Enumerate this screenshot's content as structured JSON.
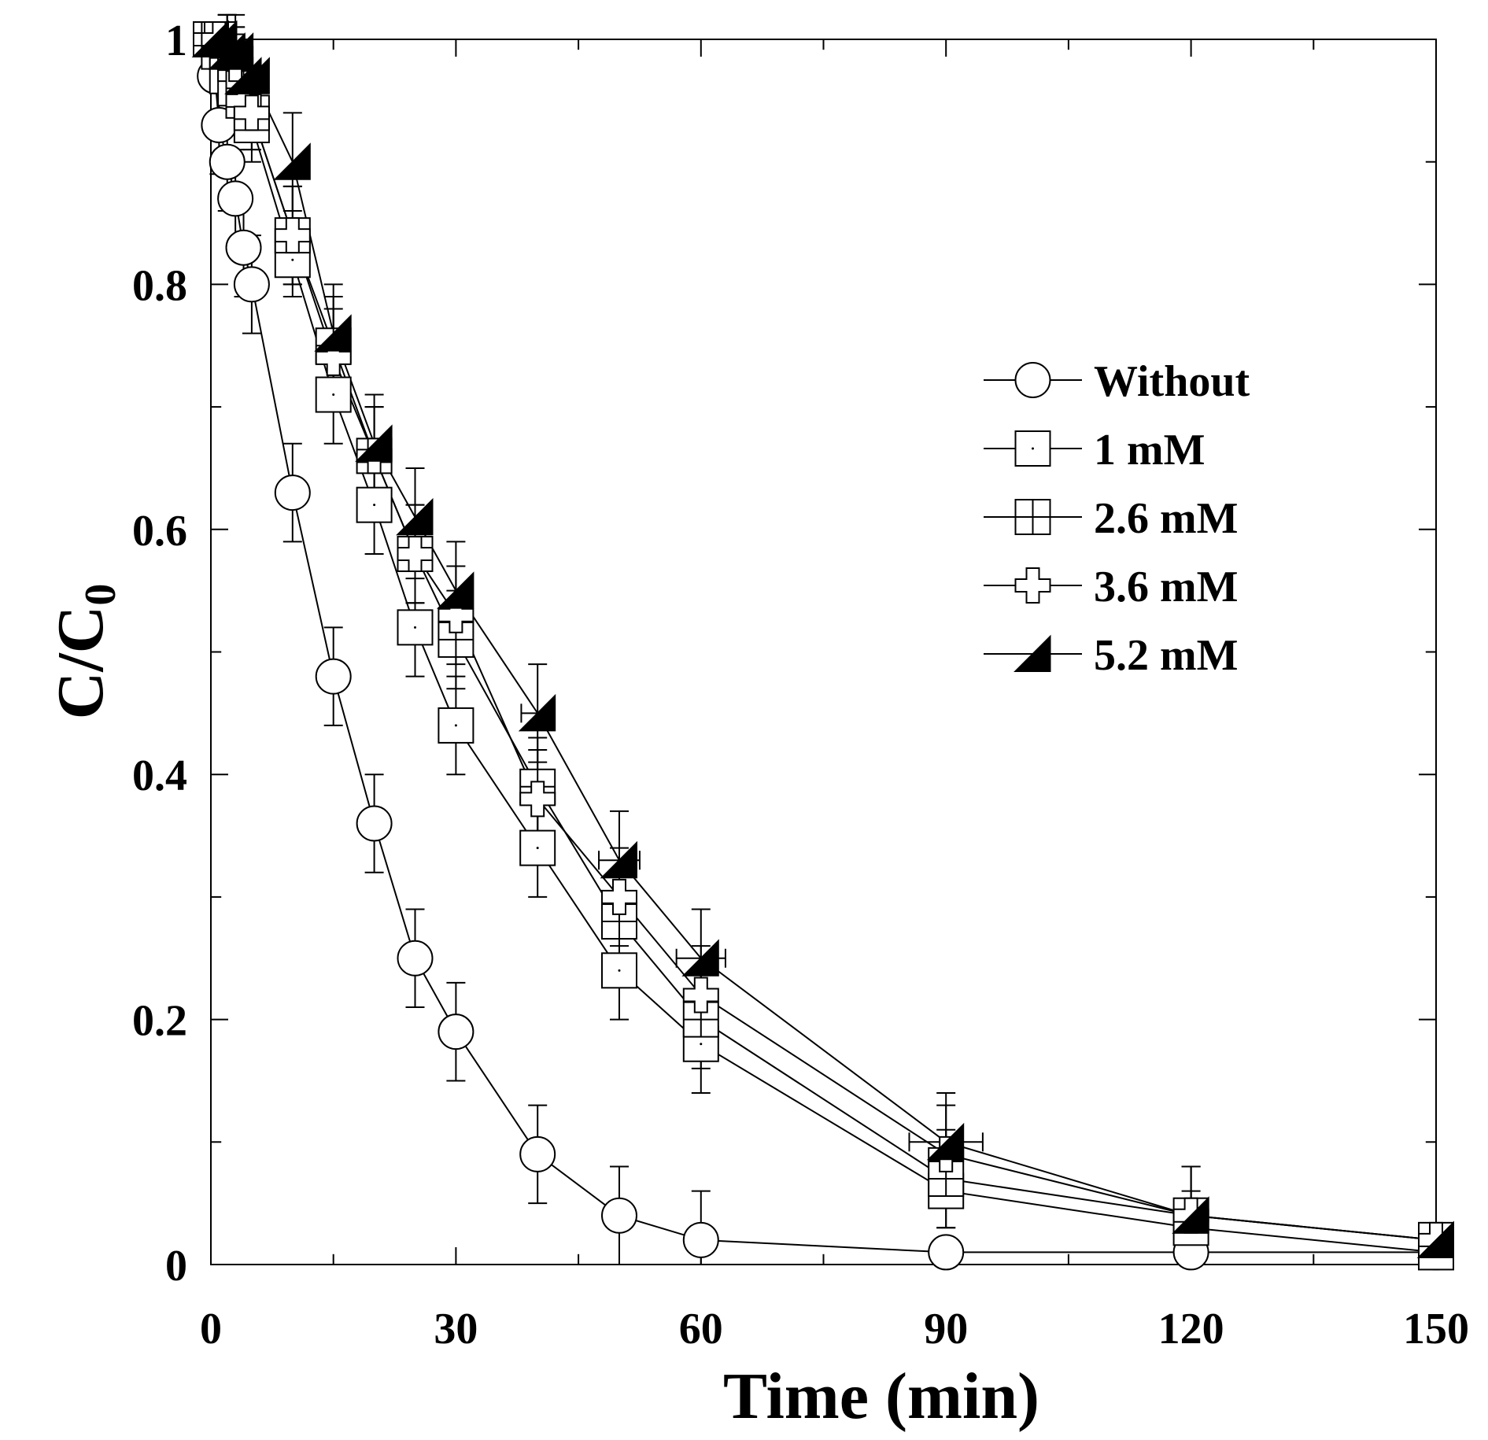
{
  "chart_data": {
    "type": "line",
    "title": "",
    "xlabel": "Time (min)",
    "ylabel_main": "C/C",
    "ylabel_sub": "0",
    "xlim": [
      0,
      150
    ],
    "ylim": [
      0,
      1
    ],
    "xticks": [
      0,
      30,
      60,
      90,
      120,
      150
    ],
    "xtick_labels": [
      "0",
      "30",
      "60",
      "90",
      "120",
      "150"
    ],
    "yticks": [
      0,
      0.2,
      0.4,
      0.6,
      0.8,
      1
    ],
    "ytick_labels": [
      "0",
      "0.2",
      "0.4",
      "0.6",
      "0.8",
      "1"
    ],
    "grid": false,
    "legend_position": "right-center",
    "series": [
      {
        "name": "Without",
        "marker": "circle",
        "x": [
          0,
          0.5,
          1,
          2,
          3,
          4,
          5,
          10,
          15,
          20,
          25,
          30,
          40,
          50,
          60,
          90,
          120,
          150
        ],
        "y": [
          1.0,
          0.97,
          0.93,
          0.9,
          0.87,
          0.83,
          0.8,
          0.63,
          0.48,
          0.36,
          0.25,
          0.19,
          0.09,
          0.04,
          0.02,
          0.01,
          0.01,
          0.01
        ],
        "yerr": [
          0,
          0,
          0.04,
          0.04,
          0.04,
          0.04,
          0.04,
          0.04,
          0.04,
          0.04,
          0.04,
          0.04,
          0.04,
          0.04,
          0.04,
          0,
          0,
          0
        ]
      },
      {
        "name": "1 mM",
        "marker": "square",
        "x": [
          0,
          1,
          2,
          3,
          4,
          5,
          10,
          15,
          20,
          25,
          30,
          40,
          50,
          60,
          90,
          120,
          150
        ],
        "y": [
          1.0,
          0.99,
          0.97,
          0.96,
          0.95,
          0.93,
          0.82,
          0.71,
          0.62,
          0.52,
          0.44,
          0.34,
          0.24,
          0.18,
          0.06,
          0.03,
          0.01
        ],
        "yerr": [
          0,
          0,
          0.03,
          0.03,
          0.03,
          0.03,
          0.03,
          0.04,
          0.04,
          0.04,
          0.04,
          0.04,
          0.04,
          0.04,
          0.03,
          0.03,
          0
        ]
      },
      {
        "name": "2.6 mM",
        "marker": "square-cross",
        "x": [
          0,
          1,
          2,
          3,
          4,
          5,
          10,
          15,
          20,
          25,
          30,
          40,
          50,
          60,
          90,
          120,
          150
        ],
        "y": [
          1.0,
          1.0,
          0.99,
          0.98,
          0.96,
          0.94,
          0.84,
          0.75,
          0.66,
          0.58,
          0.51,
          0.39,
          0.28,
          0.2,
          0.07,
          0.04,
          0.02
        ],
        "yerr": [
          0,
          0,
          0.03,
          0.03,
          0.03,
          0.03,
          0.04,
          0.04,
          0.04,
          0.04,
          0.04,
          0.04,
          0.04,
          0.04,
          0.04,
          0.04,
          0
        ]
      },
      {
        "name": "3.6 mM",
        "marker": "plus",
        "x": [
          0,
          1,
          2,
          3,
          4,
          5,
          10,
          15,
          20,
          25,
          30,
          40,
          50,
          60,
          90,
          120,
          150
        ],
        "y": [
          1.0,
          1.0,
          0.99,
          0.98,
          0.95,
          0.94,
          0.84,
          0.74,
          0.66,
          0.58,
          0.53,
          0.38,
          0.3,
          0.22,
          0.09,
          0.04,
          0.02
        ],
        "yerr": [
          0,
          0,
          0.03,
          0.03,
          0.03,
          0.03,
          0.04,
          0.04,
          0.04,
          0.04,
          0.04,
          0.04,
          0.04,
          0.04,
          0.04,
          0.04,
          0
        ]
      },
      {
        "name": "5.2 mM",
        "marker": "half-filled-triangle",
        "x": [
          0,
          1,
          2,
          3,
          4,
          5,
          10,
          15,
          20,
          25,
          30,
          40,
          50,
          60,
          90,
          120,
          150
        ],
        "y": [
          1.0,
          1.0,
          0.99,
          0.99,
          0.97,
          0.97,
          0.9,
          0.76,
          0.67,
          0.61,
          0.55,
          0.45,
          0.33,
          0.25,
          0.1,
          0.04,
          0.02
        ],
        "yerr": [
          0,
          0,
          0.03,
          0.03,
          0.03,
          0.03,
          0.04,
          0.04,
          0.04,
          0.04,
          0.04,
          0.04,
          0.04,
          0.04,
          0.04,
          0.04,
          0
        ],
        "xerr": [
          0,
          0,
          0,
          0,
          0,
          0,
          0,
          0,
          0,
          0,
          0,
          2,
          2.5,
          3,
          4.5,
          0,
          0
        ]
      }
    ]
  }
}
